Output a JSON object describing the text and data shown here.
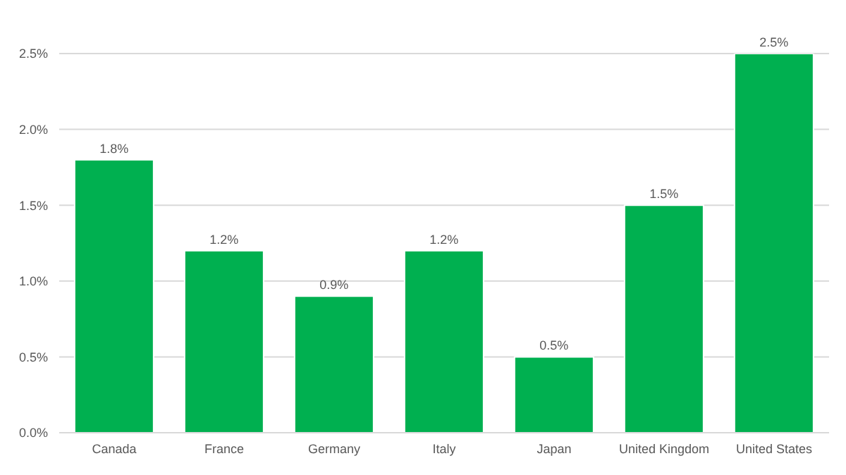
{
  "chart_data": {
    "type": "bar",
    "categories": [
      "Canada",
      "France",
      "Germany",
      "Italy",
      "Japan",
      "United Kingdom",
      "United States"
    ],
    "values": [
      1.8,
      1.2,
      0.9,
      1.2,
      0.5,
      1.5,
      2.5
    ],
    "value_labels": [
      "1.8%",
      "1.2%",
      "0.9%",
      "1.2%",
      "0.5%",
      "1.5%",
      "2.5%"
    ],
    "color": "#00b050",
    "ylim": [
      0,
      2.5
    ],
    "yticks": [
      {
        "value": 0,
        "label": "0.0%"
      },
      {
        "value": 0.5,
        "label": "0.5%"
      },
      {
        "value": 1,
        "label": "1.0%"
      },
      {
        "value": 1.5,
        "label": "1.5%"
      },
      {
        "value": 2,
        "label": "2.0%"
      },
      {
        "value": 2.5,
        "label": "2.5%"
      }
    ],
    "grid": "y"
  }
}
